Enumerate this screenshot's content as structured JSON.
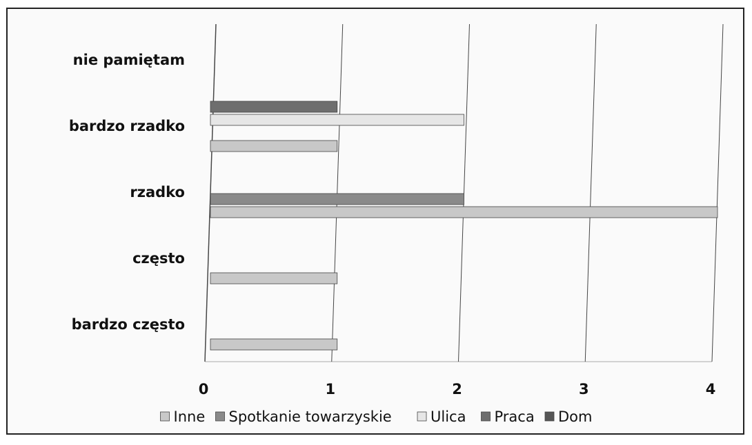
{
  "chart_data": {
    "type": "bar",
    "orientation": "horizontal",
    "categories": [
      "bardzo często",
      "często",
      "rzadko",
      "bardzo rzadko",
      "nie pamiętam"
    ],
    "series": [
      {
        "name": "Inne",
        "color": "#c8c8c8",
        "values": [
          1,
          1,
          4,
          1,
          0
        ]
      },
      {
        "name": "Spotkanie towarzyskie",
        "color": "#8a8a8a",
        "values": [
          0,
          0,
          2,
          0,
          0
        ]
      },
      {
        "name": "Ulica",
        "color": "#e6e6e6",
        "values": [
          0,
          0,
          0,
          2,
          0
        ]
      },
      {
        "name": "Praca",
        "color": "#6e6e6e",
        "values": [
          0,
          0,
          0,
          1,
          0
        ]
      },
      {
        "name": "Dom",
        "color": "#555555",
        "values": [
          0,
          0,
          0,
          0,
          0
        ]
      }
    ],
    "xlim": [
      0,
      4
    ],
    "xticks": [
      0,
      1,
      2,
      3,
      4
    ],
    "grid": true,
    "legend": "bottom"
  }
}
